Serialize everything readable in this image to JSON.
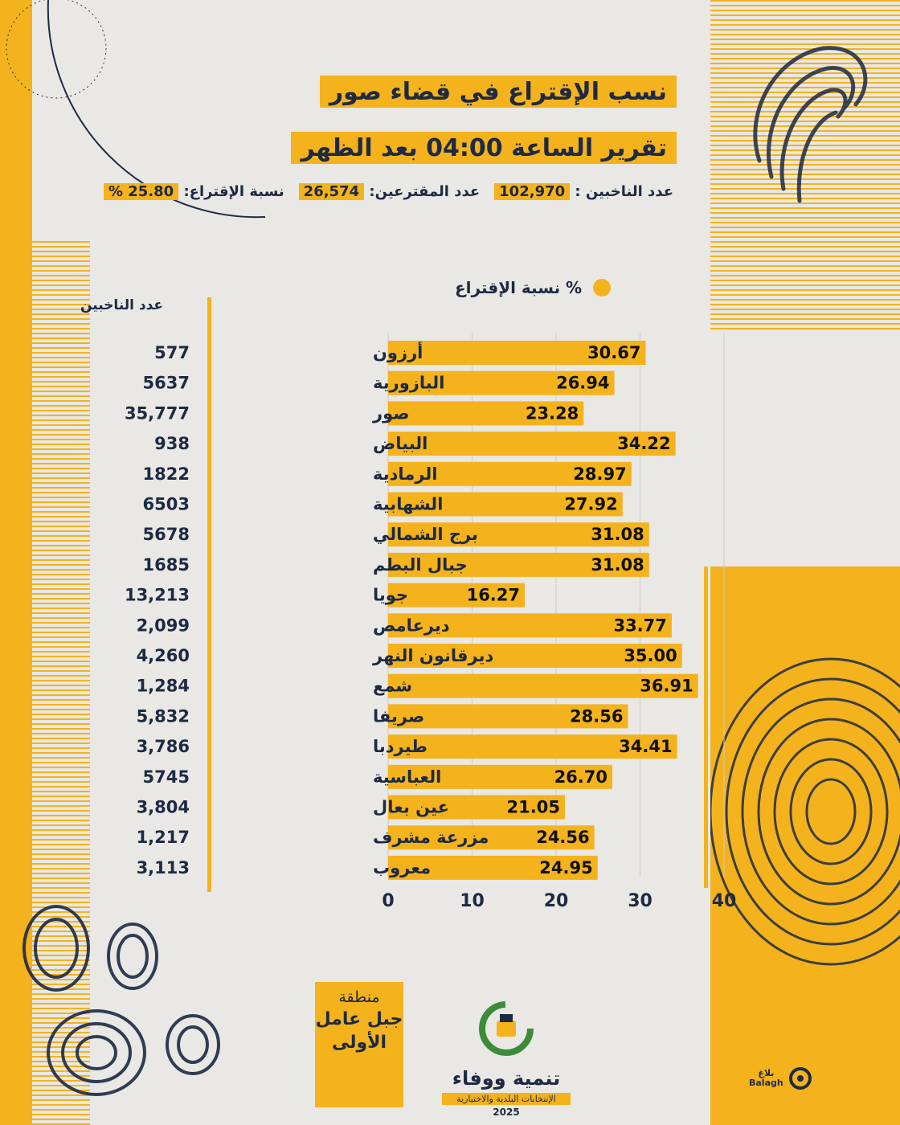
{
  "header": {
    "title": "نسب الإقتراع في قضاء صور",
    "subtitle": "تقرير الساعة 04:00 بعد الظهر"
  },
  "stats": {
    "voters_label": "عدد الناخبين :",
    "voters_value": "102,970",
    "cast_label": "عدد المقترعين:",
    "cast_value": "26,574",
    "turnout_label": "نسبة الإقتراع:",
    "turnout_value": "25.80 %"
  },
  "legend": {
    "label": "% نسبة الإقتراع"
  },
  "voters_column_header": "عدد الناخبين",
  "chart_data": {
    "type": "bar",
    "orientation": "horizontal",
    "xlim": [
      0,
      40
    ],
    "x_ticks": [
      "0",
      "10",
      "20",
      "30",
      "40"
    ],
    "grid": true,
    "legend_position": "top-right",
    "series": [
      {
        "name": "% نسبة الإقتراع",
        "values": [
          30.67,
          26.94,
          23.28,
          34.22,
          28.97,
          27.92,
          31.08,
          31.08,
          16.27,
          33.77,
          35.0,
          36.91,
          28.56,
          34.41,
          26.7,
          21.05,
          24.56,
          24.95
        ]
      }
    ],
    "categories": [
      "أرزون",
      "البازورية",
      "صور",
      "البياض",
      "الرمادية",
      "الشهابية",
      "برج الشمالي",
      "جبال البطم",
      "جويا",
      "ديرعامص",
      "ديرقانون النهر",
      "شمع",
      "صريفا",
      "طيردبا",
      "العباسية",
      "عين بعال",
      "مزرعة مشرف",
      "معروب"
    ],
    "value_labels": [
      "30.67",
      "26.94",
      "23.28",
      "34.22",
      "28.97",
      "27.92",
      "31.08",
      "31.08",
      "16.27",
      "33.77",
      "35.00",
      "36.91",
      "28.56",
      "34.41",
      "26.70",
      "21.05",
      "24.56",
      "24.95"
    ],
    "voters": [
      "577",
      "5637",
      "35,777",
      "938",
      "1822",
      "6503",
      "5678",
      "1685",
      "13,213",
      "2,099",
      "4,260",
      "1,284",
      "5,832",
      "3,786",
      "5745",
      "3,804",
      "1,217",
      "3,113"
    ],
    "bar_color": "#f4b21c"
  },
  "region": {
    "line1": "منطقة",
    "line2": "جبل عامل",
    "line3": "الأولى"
  },
  "logo": {
    "name": "تنمية ووفاء",
    "subtitle": "الإنتخابات البلدية والاختيارية",
    "year": "2025"
  },
  "brand": {
    "ar": "بلاغ",
    "en": "Balagh"
  },
  "colors": {
    "accent": "#f4b21c",
    "navy": "#1d2a44",
    "background": "#e9e8e4"
  }
}
